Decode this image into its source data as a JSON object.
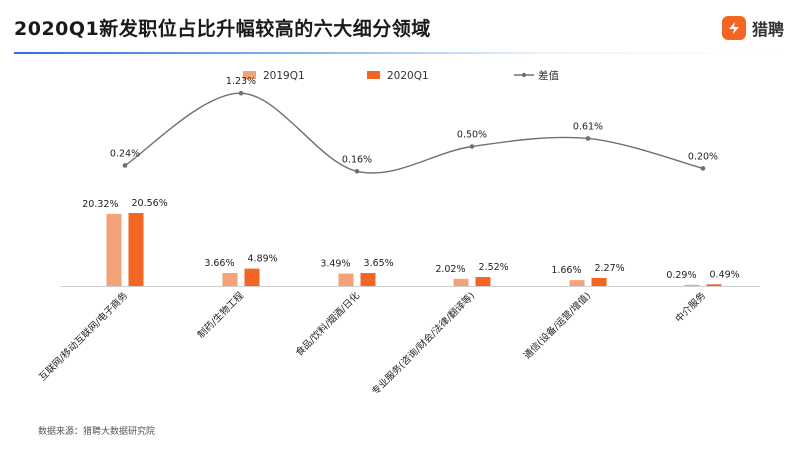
{
  "header": {
    "title": "2020Q1新发职位占比升幅较高的六大细分领域",
    "logo_text": "猎聘"
  },
  "footer": {
    "source": "数据来源：猎聘大数据研究院"
  },
  "colors": {
    "series_2019": "#f4a27a",
    "series_2020": "#f26522",
    "diff_line": "#707070",
    "brand": "#f26522"
  },
  "chart_data": {
    "type": "bar",
    "categories": [
      "互联网/移动互联网/电子商务",
      "制药/生物工程",
      "食品/饮料/烟酒/日化",
      "专业服务(咨询/财会/法律/翻译等)",
      "通信(设备/运营/增值)",
      "中介服务"
    ],
    "series": [
      {
        "name": "2019Q1",
        "values": [
          20.32,
          3.66,
          3.49,
          2.02,
          1.66,
          0.29
        ],
        "labels": [
          "20.32%",
          "3.66%",
          "3.49%",
          "2.02%",
          "1.66%",
          "0.29%"
        ]
      },
      {
        "name": "2020Q1",
        "values": [
          20.56,
          4.89,
          3.65,
          2.52,
          2.27,
          0.49
        ],
        "labels": [
          "20.56%",
          "4.89%",
          "3.65%",
          "2.52%",
          "2.27%",
          "0.49%"
        ]
      }
    ],
    "line": {
      "name": "差值",
      "values": [
        0.24,
        1.23,
        0.16,
        0.5,
        0.61,
        0.2
      ],
      "labels": [
        "0.24%",
        "1.23%",
        "0.16%",
        "0.50%",
        "0.61%",
        "0.20%"
      ]
    },
    "legend_position": "top-center",
    "grid": false
  }
}
